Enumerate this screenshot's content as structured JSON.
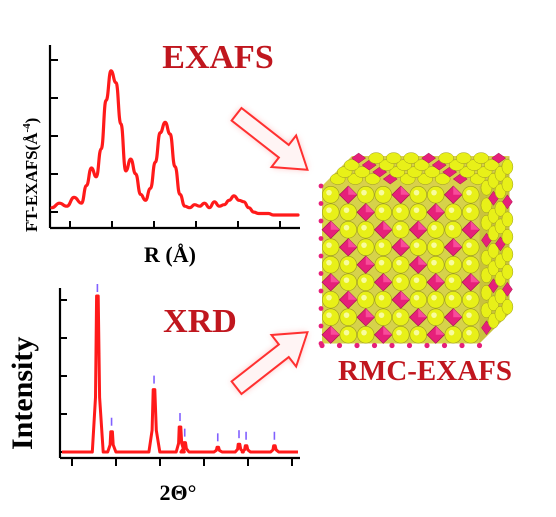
{
  "exafs_panel": {
    "title": "EXAFS",
    "y_axis_label": "FT-EXAFS(Å",
    "y_axis_sup": "-4",
    "y_axis_close": ")",
    "x_axis_label": "R (Å)",
    "curve_color": "#ff1a1a",
    "title_color": "#c0161e"
  },
  "xrd_panel": {
    "title": "XRD",
    "y_axis_label": "Intensity",
    "x_axis_label": "2Θ°",
    "curve_color": "#ff1a1a",
    "reference_tick_color": "#8060ff",
    "title_color": "#c0161e"
  },
  "model": {
    "label": "RMC-EXAFS",
    "label_color": "#c0161e",
    "octahedra_color": "#e6207a",
    "atom_color": "#e8f018",
    "arrow_icon": "right-pointing-hollow-arrow"
  },
  "chart_data": [
    {
      "type": "line",
      "title": "EXAFS",
      "xlabel": "R (Å)",
      "ylabel": "FT-EXAFS(Å-4)",
      "x": [
        0.0,
        0.03,
        0.06,
        0.09,
        0.12,
        0.14,
        0.16,
        0.18,
        0.2,
        0.22,
        0.24,
        0.26,
        0.28,
        0.3,
        0.32,
        0.34,
        0.36,
        0.38,
        0.4,
        0.42,
        0.44,
        0.46,
        0.48,
        0.5,
        0.52,
        0.54,
        0.56,
        0.58,
        0.6,
        0.62,
        0.64,
        0.66,
        0.68,
        0.7,
        0.72,
        0.74,
        0.76,
        0.78,
        0.8,
        0.82,
        0.84,
        0.86,
        0.88,
        0.9,
        0.92,
        0.94,
        0.96,
        0.98,
        1.0
      ],
      "y": [
        0.05,
        0.08,
        0.06,
        0.12,
        0.08,
        0.2,
        0.32,
        0.26,
        0.45,
        0.78,
        0.98,
        0.9,
        0.62,
        0.3,
        0.38,
        0.28,
        0.14,
        0.1,
        0.18,
        0.36,
        0.56,
        0.63,
        0.55,
        0.33,
        0.14,
        0.06,
        0.05,
        0.07,
        0.06,
        0.08,
        0.05,
        0.09,
        0.06,
        0.07,
        0.1,
        0.13,
        0.1,
        0.09,
        0.05,
        0.02,
        0.01,
        0.01,
        0.01,
        0.0,
        0.0,
        0.0,
        0.0,
        0.0,
        0.0
      ]
    },
    {
      "type": "line",
      "title": "XRD",
      "xlabel": "2Θ°",
      "ylabel": "Intensity",
      "peaks": [
        {
          "x": 0.15,
          "height": 1.0
        },
        {
          "x": 0.21,
          "height": 0.13
        },
        {
          "x": 0.39,
          "height": 0.4
        },
        {
          "x": 0.5,
          "height": 0.16
        },
        {
          "x": 0.52,
          "height": 0.06
        },
        {
          "x": 0.66,
          "height": 0.03
        },
        {
          "x": 0.75,
          "height": 0.05
        },
        {
          "x": 0.78,
          "height": 0.04
        },
        {
          "x": 0.9,
          "height": 0.04
        }
      ],
      "reference_ticks": [
        0.15,
        0.21,
        0.39,
        0.5,
        0.52,
        0.66,
        0.75,
        0.78,
        0.9
      ]
    }
  ]
}
